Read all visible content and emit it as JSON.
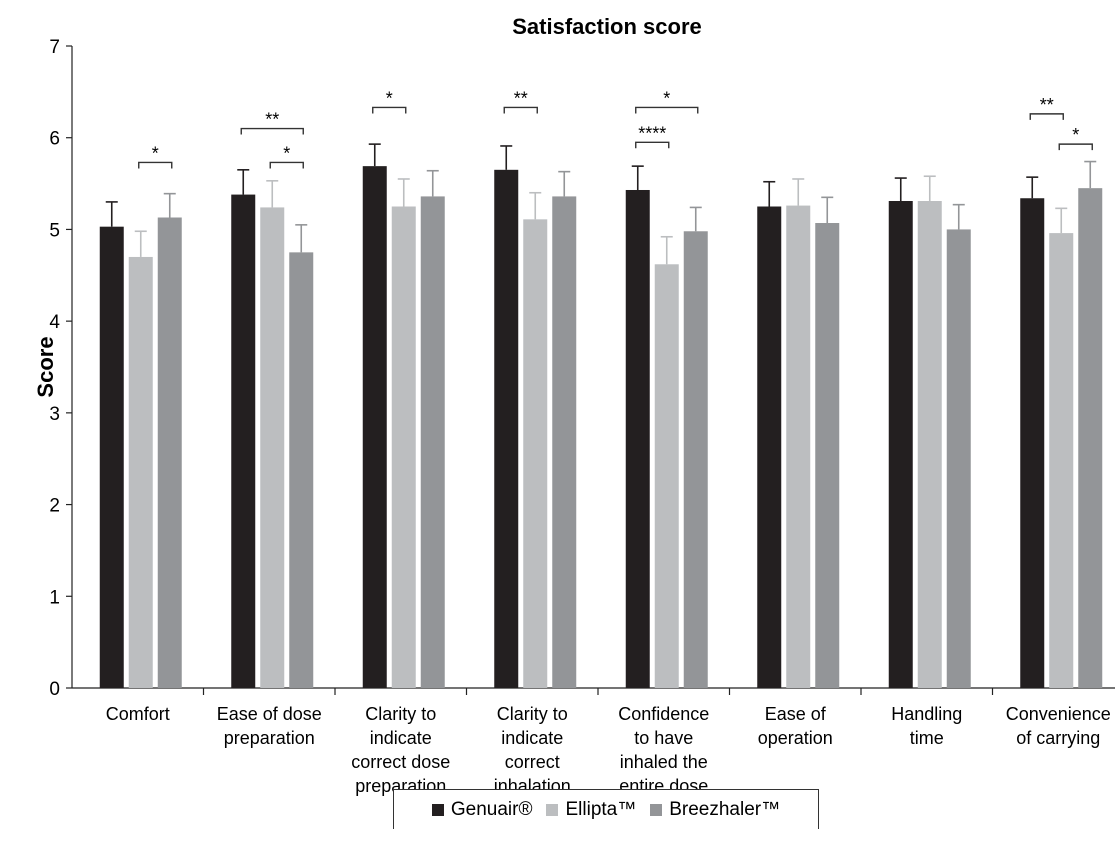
{
  "chart_data": {
    "type": "bar",
    "title": "Satisfaction score",
    "ylabel": "Score",
    "xlabel": "",
    "ylim": [
      0,
      7
    ],
    "yticks": [
      0,
      1,
      2,
      3,
      4,
      5,
      6,
      7
    ],
    "grid": false,
    "legend_position": "bottom",
    "categories": [
      [
        "Comfort"
      ],
      [
        "Ease of dose",
        "preparation"
      ],
      [
        "Clarity to",
        "indicate",
        "correct dose",
        "preparation"
      ],
      [
        "Clarity to",
        "indicate",
        "correct",
        "inhalation"
      ],
      [
        "Confidence",
        "to have",
        "inhaled the",
        "entire dose"
      ],
      [
        "Ease of",
        "operation"
      ],
      [
        "Handling",
        "time"
      ],
      [
        "Convenience",
        "of carrying"
      ]
    ],
    "series": [
      {
        "name": "Genuair®",
        "color": "#231f20",
        "values": [
          5.03,
          5.38,
          5.69,
          5.65,
          5.43,
          5.25,
          5.31,
          5.34
        ],
        "errors": [
          0.27,
          0.27,
          0.24,
          0.26,
          0.26,
          0.27,
          0.25,
          0.23
        ]
      },
      {
        "name": "Ellipta™",
        "color": "#bcbec0",
        "values": [
          4.7,
          5.24,
          5.25,
          5.11,
          4.62,
          5.26,
          5.31,
          4.96
        ],
        "errors": [
          0.28,
          0.29,
          0.3,
          0.29,
          0.3,
          0.29,
          0.27,
          0.27
        ]
      },
      {
        "name": "Breezhaler™",
        "color": "#939598",
        "values": [
          5.13,
          4.75,
          5.36,
          5.36,
          4.98,
          5.07,
          5.0,
          5.45
        ],
        "errors": [
          0.26,
          0.3,
          0.28,
          0.27,
          0.26,
          0.28,
          0.27,
          0.29
        ]
      }
    ],
    "annotations": [
      {
        "category": 0,
        "from": 1,
        "to": 2,
        "label": "*",
        "y": 5.73
      },
      {
        "category": 1,
        "from": 0,
        "to": 2,
        "label": "**",
        "y": 6.1
      },
      {
        "category": 1,
        "from": 1,
        "to": 2,
        "label": "*",
        "y": 5.73
      },
      {
        "category": 2,
        "from": 0,
        "to": 1,
        "label": "*",
        "y": 6.33
      },
      {
        "category": 3,
        "from": 0,
        "to": 1,
        "label": "**",
        "y": 6.33
      },
      {
        "category": 4,
        "from": 0,
        "to": 2,
        "label": "*",
        "y": 6.33
      },
      {
        "category": 4,
        "from": 0,
        "to": 1,
        "label": "****",
        "y": 5.95
      },
      {
        "category": 7,
        "from": 0,
        "to": 1,
        "label": "**",
        "y": 6.26
      },
      {
        "category": 7,
        "from": 1,
        "to": 2,
        "label": "*",
        "y": 5.93
      }
    ]
  }
}
